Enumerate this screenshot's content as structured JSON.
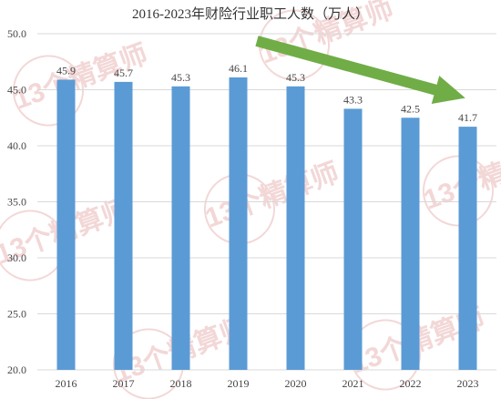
{
  "chart_data": {
    "type": "bar",
    "title": "2016-2023年财险行业职工人数（万人）",
    "categories": [
      "2016",
      "2017",
      "2018",
      "2019",
      "2020",
      "2021",
      "2022",
      "2023"
    ],
    "series": [
      {
        "values": [
          45.9,
          45.7,
          45.3,
          46.1,
          45.3,
          43.3,
          42.5,
          41.7
        ]
      }
    ],
    "data_labels": [
      "45.9",
      "45.7",
      "45.3",
      "46.1",
      "45.3",
      "43.3",
      "42.5",
      "41.7"
    ],
    "ylim": [
      20.0,
      50.0
    ],
    "yticks": [
      "20.0",
      "25.0",
      "30.0",
      "35.0",
      "40.0",
      "45.0",
      "50.0"
    ],
    "grid": true,
    "legend": "none",
    "annotation": "downward trend arrow",
    "watermark": "13个精算师",
    "colors": {
      "bar": "#5b9bd5",
      "arrow": "#70ad47",
      "grid": "#d9d9d9",
      "watermark": "#f3d7d7"
    }
  }
}
